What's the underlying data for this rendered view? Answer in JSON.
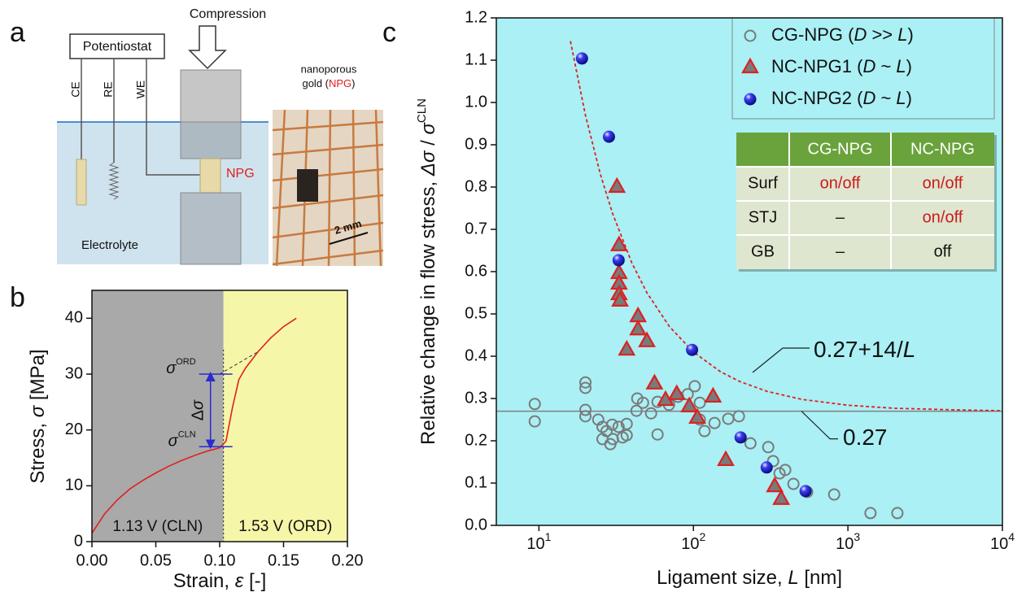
{
  "panel_a": {
    "panel": "a",
    "potentiostat": "Potentiostat",
    "compression": "Compression",
    "electrodes": [
      "CE",
      "RE",
      "WE"
    ],
    "sample": "NPG",
    "electrolyte": "Electrolyte",
    "photo_label": [
      "nanoporous",
      "gold (NPG)"
    ],
    "scale_bar": "2 mm"
  },
  "chart_data": [
    {
      "type": "line",
      "panel": "b",
      "xlabel": "Strain, ε [-]",
      "ylabel": "Stress, σ [MPa]",
      "xlim": [
        0,
        0.2
      ],
      "ylim": [
        0,
        45
      ],
      "xticks": [
        {
          "value": 0,
          "label": "0.00"
        },
        {
          "value": 0.05,
          "label": "0.05"
        },
        {
          "value": 0.1,
          "label": "0.10"
        },
        {
          "value": 0.15,
          "label": "0.15"
        },
        {
          "value": 0.2,
          "label": "0.20"
        }
      ],
      "yticks": [
        0,
        10,
        20,
        30,
        40
      ],
      "regions": [
        {
          "label": "1.13 V (CLN)",
          "range": [
            0,
            0.103
          ],
          "color": "#a9a9a9"
        },
        {
          "label": "1.53 V (ORD)",
          "range": [
            0.103,
            0.2
          ],
          "color": "#f6f6a8"
        }
      ],
      "levels": [
        {
          "label": "σ",
          "sup": "ORD",
          "value": 30
        },
        {
          "label": "σ",
          "sup": "CLN",
          "value": 17
        }
      ],
      "delta_label": "Δσ",
      "x": [
        0,
        0.01,
        0.02,
        0.03,
        0.04,
        0.05,
        0.06,
        0.07,
        0.08,
        0.09,
        0.1,
        0.105,
        0.11,
        0.115,
        0.12,
        0.13,
        0.14,
        0.15,
        0.16
      ],
      "series": [
        {
          "color": "#e02020",
          "values": [
            1.5,
            5,
            7.5,
            9.5,
            11,
            12.3,
            13.5,
            14.5,
            15.4,
            16.2,
            16.8,
            18,
            24,
            29,
            31,
            34,
            36.5,
            38.5,
            40
          ]
        }
      ]
    },
    {
      "type": "scatter",
      "panel": "c",
      "xlabel": "Ligament size, L [nm]",
      "ylabel": "Relative change in flow stress, Δσ / σ",
      "ylabel_sup": "CLN",
      "xscale": "log",
      "xlim": [
        5.3,
        10000
      ],
      "xticks": [
        {
          "value": 10,
          "label": "10",
          "sup": "1"
        },
        {
          "value": 100,
          "label": "10",
          "sup": "2"
        },
        {
          "value": 1000,
          "label": "10",
          "sup": "3"
        },
        {
          "value": 10000,
          "label": "10",
          "sup": "4"
        }
      ],
      "ylim": [
        0,
        1.2
      ],
      "yticks": [
        {
          "value": 0,
          "label": "0.0"
        },
        {
          "value": 0.1,
          "label": "0.1"
        },
        {
          "value": 0.2,
          "label": "0.2"
        },
        {
          "value": 0.3,
          "label": "0.3"
        },
        {
          "value": 0.4,
          "label": "0.4"
        },
        {
          "value": 0.5,
          "label": "0.5"
        },
        {
          "value": 0.6,
          "label": "0.6"
        },
        {
          "value": 0.7,
          "label": "0.7"
        },
        {
          "value": 0.8,
          "label": "0.8"
        },
        {
          "value": 0.9,
          "label": "0.9"
        },
        {
          "value": 1,
          "label": "1.0"
        },
        {
          "value": 1.1,
          "label": "1.1"
        },
        {
          "value": 1.2,
          "label": "1.2"
        }
      ],
      "background": "#aaf0f5",
      "legend": "upper right",
      "series": [
        {
          "name": "CG-NPG (D >> L)",
          "marker": "open-circle",
          "color": "#7a7a7a",
          "x": [
            9.4,
            9.4,
            20,
            20,
            20,
            20,
            24.2,
            25.8,
            27.4,
            25.8,
            29.8,
            30.1,
            29,
            32.8,
            34.8,
            37,
            37,
            42.8,
            43.3,
            47.2,
            53.2,
            58.6,
            58.6,
            69.5,
            79.4,
            91.8,
            102,
            110,
            110,
            118,
            137,
            168,
            197,
            234,
            305,
            328,
            361,
            393,
            444,
            545,
            815,
            1400,
            2090
          ],
          "values": [
            0.287,
            0.246,
            0.338,
            0.325,
            0.273,
            0.258,
            0.25,
            0.233,
            0.223,
            0.204,
            0.238,
            0.204,
            0.192,
            0.233,
            0.208,
            0.213,
            0.24,
            0.271,
            0.3,
            0.29,
            0.265,
            0.292,
            0.215,
            0.285,
            0.304,
            0.31,
            0.329,
            0.29,
            0.25,
            0.223,
            0.242,
            0.252,
            0.258,
            0.194,
            0.185,
            0.152,
            0.123,
            0.131,
            0.098,
            0.079,
            0.073,
            0.029,
            0.029
          ]
        },
        {
          "name": "NC-NPG1 (D ~ L)",
          "marker": "triangle",
          "color": "#e02020",
          "x": [
            32,
            33,
            33,
            33,
            33,
            33.5,
            43.8,
            43.8,
            37,
            50,
            56,
            66,
            78,
            94,
            106,
            134,
            162,
            336,
            370
          ],
          "values": [
            0.8,
            0.662,
            0.596,
            0.571,
            0.546,
            0.531,
            0.494,
            0.463,
            0.415,
            0.435,
            0.335,
            0.296,
            0.31,
            0.281,
            0.254,
            0.304,
            0.154,
            0.092,
            0.062
          ]
        },
        {
          "name": "NC-NPG2 (D ~ L)",
          "marker": "sphere",
          "color": "#1a1ae0",
          "x": [
            19,
            28.4,
            32.8,
            98,
            202,
            298,
            532
          ],
          "values": [
            1.104,
            0.919,
            0.627,
            0.415,
            0.208,
            0.137,
            0.081
          ]
        }
      ],
      "fit": {
        "label": "0.27+14/L",
        "color": "#e02020",
        "x": [
          16,
          20,
          25,
          30,
          40,
          50,
          70,
          100,
          150,
          200,
          300,
          500,
          1000,
          2000,
          5000,
          10000
        ],
        "values": [
          1.145,
          0.97,
          0.83,
          0.737,
          0.62,
          0.55,
          0.47,
          0.41,
          0.363,
          0.34,
          0.317,
          0.298,
          0.284,
          0.277,
          0.273,
          0.271
        ]
      },
      "baseline": {
        "label": "0.27",
        "value": 0.27,
        "color": "#808080"
      },
      "table": {
        "columns": [
          "CG-NPG",
          "NC-NPG"
        ],
        "rows": [
          [
            "Surf",
            "on/off",
            "on/off"
          ],
          [
            "STJ",
            "–",
            "on/off"
          ],
          [
            "GB",
            "–",
            "off"
          ]
        ]
      }
    }
  ]
}
